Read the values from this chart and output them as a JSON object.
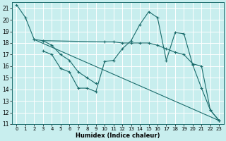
{
  "xlabel": "Humidex (Indice chaleur)",
  "xlim": [
    -0.5,
    23.5
  ],
  "ylim": [
    11,
    21.5
  ],
  "yticks": [
    11,
    12,
    13,
    14,
    15,
    16,
    17,
    18,
    19,
    20,
    21
  ],
  "xticks": [
    0,
    1,
    2,
    3,
    4,
    5,
    6,
    7,
    8,
    9,
    10,
    11,
    12,
    13,
    14,
    15,
    16,
    17,
    18,
    19,
    20,
    21,
    22,
    23
  ],
  "bg_color": "#c8eeee",
  "grid_color": "#ffffff",
  "line_color": "#1a6b6b",
  "lines": [
    {
      "x": [
        0,
        1,
        2,
        23
      ],
      "y": [
        21.3,
        20.2,
        18.3,
        11.3
      ]
    },
    {
      "x": [
        2,
        3,
        10,
        11,
        12,
        13,
        14,
        15,
        16,
        17,
        18,
        19,
        20,
        21,
        22,
        23
      ],
      "y": [
        18.3,
        18.2,
        18.1,
        18.1,
        18.0,
        18.0,
        18.0,
        18.0,
        17.8,
        17.5,
        17.2,
        17.0,
        16.2,
        16.0,
        12.2,
        11.3
      ]
    },
    {
      "x": [
        3,
        4,
        5,
        6,
        7,
        8,
        9,
        10,
        11,
        12,
        13,
        14,
        15,
        16,
        17,
        18,
        19,
        20,
        21,
        22,
        23
      ],
      "y": [
        17.3,
        17.0,
        15.8,
        15.5,
        14.1,
        14.1,
        13.8,
        16.4,
        16.5,
        17.5,
        18.2,
        19.6,
        20.7,
        20.2,
        16.5,
        18.9,
        18.8,
        16.1,
        14.1,
        12.2,
        11.3
      ]
    },
    {
      "x": [
        3,
        4,
        5,
        6,
        7,
        8,
        9
      ],
      "y": [
        18.2,
        17.8,
        17.0,
        16.5,
        15.5,
        15.0,
        14.5
      ]
    }
  ]
}
